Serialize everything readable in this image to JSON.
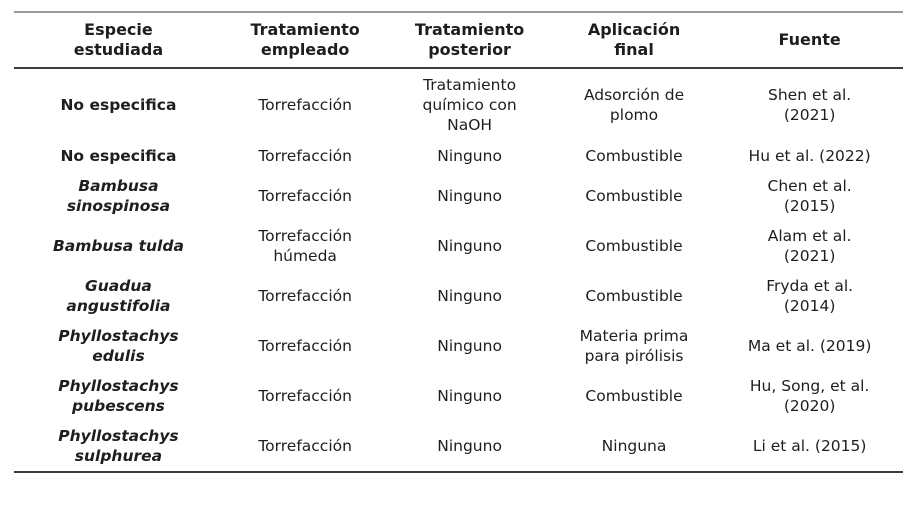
{
  "colors": {
    "background": "#ffffff",
    "text": "#1e1e1e",
    "rule_top": "#9a9a9a",
    "rule_dark": "#3d3d3d"
  },
  "table": {
    "headers": [
      "Especie\nestudiada",
      "Tratamiento\nempleado",
      "Tratamiento\nposterior",
      "Aplicación\nfinal",
      "Fuente"
    ],
    "rows": [
      {
        "species_scientific": false,
        "cells": [
          "No especifica",
          "Torrefacción",
          "Tratamiento\nquímico con\nNaOH",
          "Adsorción de\nplomo",
          "Shen et al.\n(2021)"
        ]
      },
      {
        "species_scientific": false,
        "cells": [
          "No especifica",
          "Torrefacción",
          "Ninguno",
          "Combustible",
          "Hu et al. (2022)"
        ]
      },
      {
        "species_scientific": true,
        "cells": [
          "Bambusa\nsinospinosa",
          "Torrefacción",
          "Ninguno",
          "Combustible",
          "Chen et al.\n(2015)"
        ]
      },
      {
        "species_scientific": true,
        "cells": [
          "Bambusa tulda",
          "Torrefacción\nhúmeda",
          "Ninguno",
          "Combustible",
          "Alam et al.\n(2021)"
        ]
      },
      {
        "species_scientific": true,
        "cells": [
          "Guadua\nangustifolia",
          "Torrefacción",
          "Ninguno",
          "Combustible",
          "Fryda et al.\n(2014)"
        ]
      },
      {
        "species_scientific": true,
        "cells": [
          "Phyllostachys\nedulis",
          "Torrefacción",
          "Ninguno",
          "Materia prima\npara pirólisis",
          "Ma et al. (2019)"
        ]
      },
      {
        "species_scientific": true,
        "cells": [
          "Phyllostachys\npubescens",
          "Torrefacción",
          "Ninguno",
          "Combustible",
          "Hu, Song, et al.\n(2020)"
        ]
      },
      {
        "species_scientific": true,
        "cells": [
          "Phyllostachys\nsulphurea",
          "Torrefacción",
          "Ninguno",
          "Ninguna",
          "Li et al. (2015)"
        ]
      }
    ]
  }
}
